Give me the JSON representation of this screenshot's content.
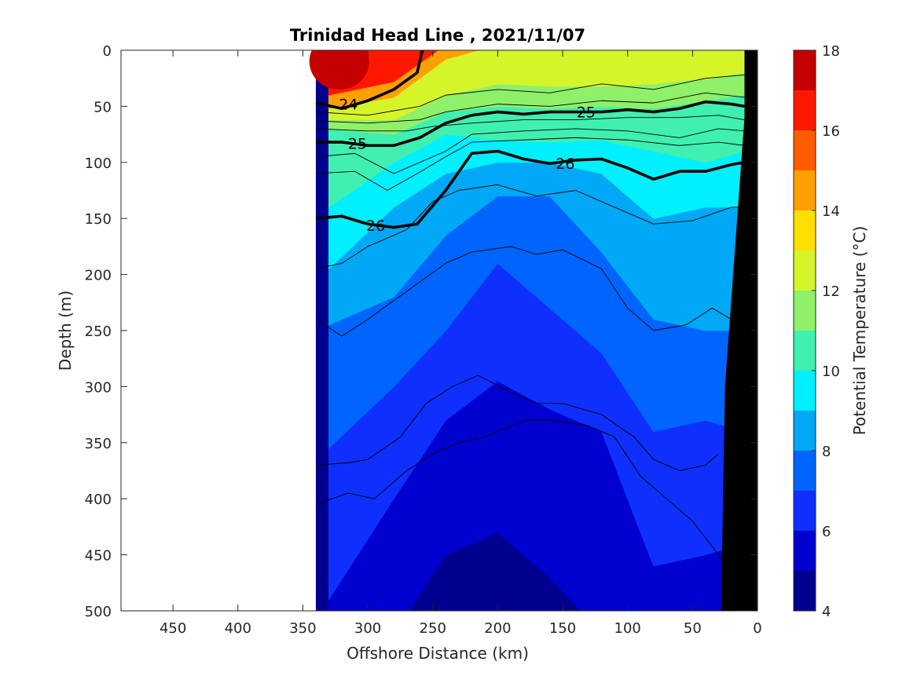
{
  "chart_data": {
    "type": "heatmap",
    "title": "Trinidad Head Line , 2021/11/07",
    "xlabel": "Offshore Distance (km)",
    "ylabel": "Depth (m)",
    "colorbar_label": "Potential Temperature (°C)",
    "xlim": [
      490,
      0
    ],
    "x_reversed": true,
    "ylim": [
      0,
      500
    ],
    "y_reversed": true,
    "x_ticks": [
      450,
      400,
      350,
      300,
      250,
      200,
      150,
      100,
      50,
      0
    ],
    "y_ticks": [
      0,
      50,
      100,
      150,
      200,
      250,
      300,
      350,
      400,
      450,
      500
    ],
    "colorbar_ticks": [
      4,
      6,
      8,
      10,
      12,
      14,
      16,
      18
    ],
    "data_extent_x": [
      340,
      10
    ],
    "levels": [
      {
        "min": 4,
        "max": 5,
        "color": "#00008f"
      },
      {
        "min": 5,
        "max": 6,
        "color": "#0000cf"
      },
      {
        "min": 6,
        "max": 7,
        "color": "#0f2fff"
      },
      {
        "min": 7,
        "max": 8,
        "color": "#0064ff"
      },
      {
        "min": 8,
        "max": 9,
        "color": "#00a8f5"
      },
      {
        "min": 9,
        "max": 10,
        "color": "#00f0ff"
      },
      {
        "min": 10,
        "max": 11,
        "color": "#3ff0b0"
      },
      {
        "min": 11,
        "max": 12,
        "color": "#8ff06a"
      },
      {
        "min": 12,
        "max": 13,
        "color": "#d5f52a"
      },
      {
        "min": 13,
        "max": 14,
        "color": "#ffdf00"
      },
      {
        "min": 14,
        "max": 15,
        "color": "#ffa000"
      },
      {
        "min": 15,
        "max": 16,
        "color": "#ff5c00"
      },
      {
        "min": 16,
        "max": 17,
        "color": "#ff1800"
      },
      {
        "min": 17,
        "max": 18,
        "color": "#c40000"
      }
    ],
    "temperature_profiles": [
      {
        "x": 330,
        "depth_of_temp": {
          "16": 40,
          "14": 52,
          "12": 62,
          "11": 70,
          "10": 140,
          "9": 195,
          "8": 245,
          "7": 355,
          "6": 490,
          "5": 530
        }
      },
      {
        "x": 280,
        "depth_of_temp": {
          "16": 28,
          "14": 42,
          "12": 62,
          "11": 75,
          "10": 100,
          "9": 140,
          "8": 220,
          "7": 300,
          "6": 400,
          "5": 520
        }
      },
      {
        "x": 240,
        "depth_of_temp": {
          "16": -5,
          "14": 8,
          "12": 40,
          "11": 55,
          "10": 75,
          "9": 110,
          "8": 165,
          "7": 250,
          "6": 330,
          "5": 450
        }
      },
      {
        "x": 200,
        "depth_of_temp": {
          "16": -10,
          "14": -5,
          "12": 30,
          "11": 50,
          "10": 80,
          "9": 100,
          "8": 130,
          "7": 190,
          "6": 295,
          "5": 430
        }
      },
      {
        "x": 160,
        "depth_of_temp": {
          "16": -10,
          "14": -5,
          "12": 32,
          "11": 52,
          "10": 82,
          "9": 100,
          "8": 130,
          "7": 230,
          "6": 320,
          "5": 470
        }
      },
      {
        "x": 120,
        "depth_of_temp": {
          "16": -10,
          "14": -5,
          "12": 32,
          "11": 50,
          "10": 80,
          "9": 110,
          "8": 180,
          "7": 270,
          "6": 340,
          "5": 520
        }
      },
      {
        "x": 80,
        "depth_of_temp": {
          "16": -10,
          "14": -5,
          "12": 30,
          "11": 52,
          "10": 90,
          "9": 150,
          "8": 240,
          "7": 340,
          "6": 460,
          "5": 530
        }
      },
      {
        "x": 40,
        "depth_of_temp": {
          "16": -10,
          "14": -5,
          "12": 25,
          "11": 45,
          "10": 100,
          "9": 140,
          "8": 250,
          "7": 330,
          "6": 450,
          "5": 540
        }
      },
      {
        "x": 10,
        "depth_of_temp": {
          "16": -10,
          "14": -10,
          "12": 20,
          "11": 40,
          "10": 90,
          "9": 140,
          "8": 250,
          "7": 340,
          "6": 440,
          "5": 540
        }
      }
    ],
    "warm_core": {
      "x": 322,
      "depth": 10,
      "temp": 17.5
    },
    "density_contours": [
      {
        "label": "24",
        "bold": true,
        "label_at": {
          "x": 315,
          "depth": 48
        },
        "points": [
          [
            340,
            47
          ],
          [
            320,
            52
          ],
          [
            300,
            45
          ],
          [
            280,
            35
          ],
          [
            262,
            20
          ],
          [
            258,
            0
          ]
        ]
      },
      {
        "label": "25",
        "bold": true,
        "label_at": [
          {
            "x": 308,
            "depth": 83
          },
          {
            "x": 132,
            "depth": 55
          }
        ],
        "points": [
          [
            340,
            82
          ],
          [
            320,
            82
          ],
          [
            300,
            85
          ],
          [
            280,
            85
          ],
          [
            260,
            78
          ],
          [
            240,
            65
          ],
          [
            220,
            58
          ],
          [
            200,
            55
          ],
          [
            180,
            57
          ],
          [
            160,
            55
          ],
          [
            140,
            55
          ],
          [
            120,
            55
          ],
          [
            100,
            53
          ],
          [
            80,
            55
          ],
          [
            60,
            52
          ],
          [
            40,
            46
          ],
          [
            20,
            48
          ],
          [
            10,
            50
          ]
        ]
      },
      {
        "label": "26",
        "bold": true,
        "label_at": [
          {
            "x": 294,
            "depth": 156
          },
          {
            "x": 148,
            "depth": 101
          }
        ],
        "points": [
          [
            340,
            150
          ],
          [
            320,
            148
          ],
          [
            300,
            155
          ],
          [
            280,
            158
          ],
          [
            262,
            155
          ],
          [
            240,
            125
          ],
          [
            220,
            92
          ],
          [
            200,
            90
          ],
          [
            180,
            97
          ],
          [
            160,
            101
          ],
          [
            140,
            98
          ],
          [
            120,
            97
          ],
          [
            100,
            105
          ],
          [
            80,
            115
          ],
          [
            60,
            108
          ],
          [
            40,
            108
          ],
          [
            20,
            102
          ],
          [
            10,
            100
          ]
        ]
      },
      {
        "label": "",
        "bold": false,
        "points": [
          [
            340,
            55
          ],
          [
            300,
            58
          ],
          [
            260,
            50
          ],
          [
            240,
            40
          ],
          [
            200,
            35
          ],
          [
            160,
            38
          ],
          [
            120,
            30
          ],
          [
            80,
            35
          ],
          [
            40,
            25
          ],
          [
            10,
            22
          ]
        ]
      },
      {
        "label": "",
        "bold": false,
        "points": [
          [
            340,
            63
          ],
          [
            300,
            65
          ],
          [
            260,
            62
          ],
          [
            240,
            55
          ],
          [
            200,
            48
          ],
          [
            160,
            50
          ],
          [
            120,
            45
          ],
          [
            80,
            47
          ],
          [
            40,
            38
          ],
          [
            10,
            42
          ]
        ]
      },
      {
        "label": "",
        "bold": false,
        "points": [
          [
            340,
            70
          ],
          [
            300,
            72
          ],
          [
            270,
            72
          ],
          [
            250,
            68
          ],
          [
            220,
            65
          ],
          [
            180,
            62
          ],
          [
            140,
            62
          ],
          [
            100,
            60
          ],
          [
            60,
            60
          ],
          [
            30,
            58
          ],
          [
            10,
            62
          ]
        ]
      },
      {
        "label": "",
        "bold": false,
        "points": [
          [
            340,
            95
          ],
          [
            310,
            92
          ],
          [
            280,
            110
          ],
          [
            260,
            100
          ],
          [
            240,
            90
          ],
          [
            220,
            75
          ],
          [
            180,
            72
          ],
          [
            140,
            70
          ],
          [
            100,
            72
          ],
          [
            60,
            78
          ],
          [
            30,
            70
          ],
          [
            10,
            72
          ]
        ]
      },
      {
        "label": "",
        "bold": false,
        "points": [
          [
            340,
            110
          ],
          [
            310,
            108
          ],
          [
            285,
            125
          ],
          [
            262,
            110
          ],
          [
            240,
            95
          ],
          [
            220,
            82
          ],
          [
            180,
            80
          ],
          [
            140,
            78
          ],
          [
            100,
            80
          ],
          [
            60,
            85
          ],
          [
            30,
            82
          ],
          [
            10,
            85
          ]
        ]
      },
      {
        "label": "",
        "bold": false,
        "points": [
          [
            340,
            195
          ],
          [
            320,
            190
          ],
          [
            300,
            175
          ],
          [
            270,
            160
          ],
          [
            250,
            135
          ],
          [
            230,
            125
          ],
          [
            200,
            120
          ],
          [
            170,
            130
          ],
          [
            140,
            125
          ],
          [
            110,
            140
          ],
          [
            80,
            155
          ],
          [
            50,
            152
          ],
          [
            20,
            140
          ],
          [
            10,
            140
          ]
        ]
      },
      {
        "label": "",
        "bold": false,
        "points": [
          [
            340,
            240
          ],
          [
            320,
            255
          ],
          [
            300,
            240
          ],
          [
            270,
            215
          ],
          [
            240,
            190
          ],
          [
            220,
            180
          ],
          [
            190,
            175
          ],
          [
            170,
            182
          ],
          [
            150,
            178
          ],
          [
            120,
            195
          ],
          [
            100,
            230
          ],
          [
            80,
            250
          ],
          [
            55,
            245
          ],
          [
            35,
            230
          ],
          [
            20,
            240
          ],
          [
            10,
            250
          ]
        ]
      },
      {
        "label": "",
        "bold": false,
        "points": [
          [
            340,
            370
          ],
          [
            315,
            368
          ],
          [
            300,
            365
          ],
          [
            275,
            345
          ],
          [
            255,
            315
          ],
          [
            235,
            300
          ],
          [
            215,
            290
          ],
          [
            190,
            305
          ],
          [
            170,
            315
          ],
          [
            150,
            315
          ],
          [
            120,
            325
          ],
          [
            95,
            345
          ],
          [
            80,
            365
          ],
          [
            60,
            375
          ],
          [
            40,
            370
          ],
          [
            30,
            360
          ]
        ]
      },
      {
        "label": "",
        "bold": false,
        "points": [
          [
            340,
            405
          ],
          [
            315,
            395
          ],
          [
            295,
            400
          ],
          [
            270,
            375
          ],
          [
            250,
            360
          ],
          [
            230,
            350
          ],
          [
            210,
            345
          ],
          [
            180,
            330
          ],
          [
            160,
            330
          ],
          [
            130,
            335
          ],
          [
            110,
            345
          ],
          [
            90,
            380
          ],
          [
            70,
            400
          ],
          [
            50,
            420
          ],
          [
            30,
            450
          ],
          [
            20,
            470
          ]
        ]
      }
    ],
    "land_mask": {
      "color": "#000000",
      "points": [
        [
          0,
          0
        ],
        [
          10,
          0
        ],
        [
          10,
          60
        ],
        [
          25,
          300
        ],
        [
          28,
          500
        ],
        [
          0,
          500
        ]
      ]
    }
  }
}
